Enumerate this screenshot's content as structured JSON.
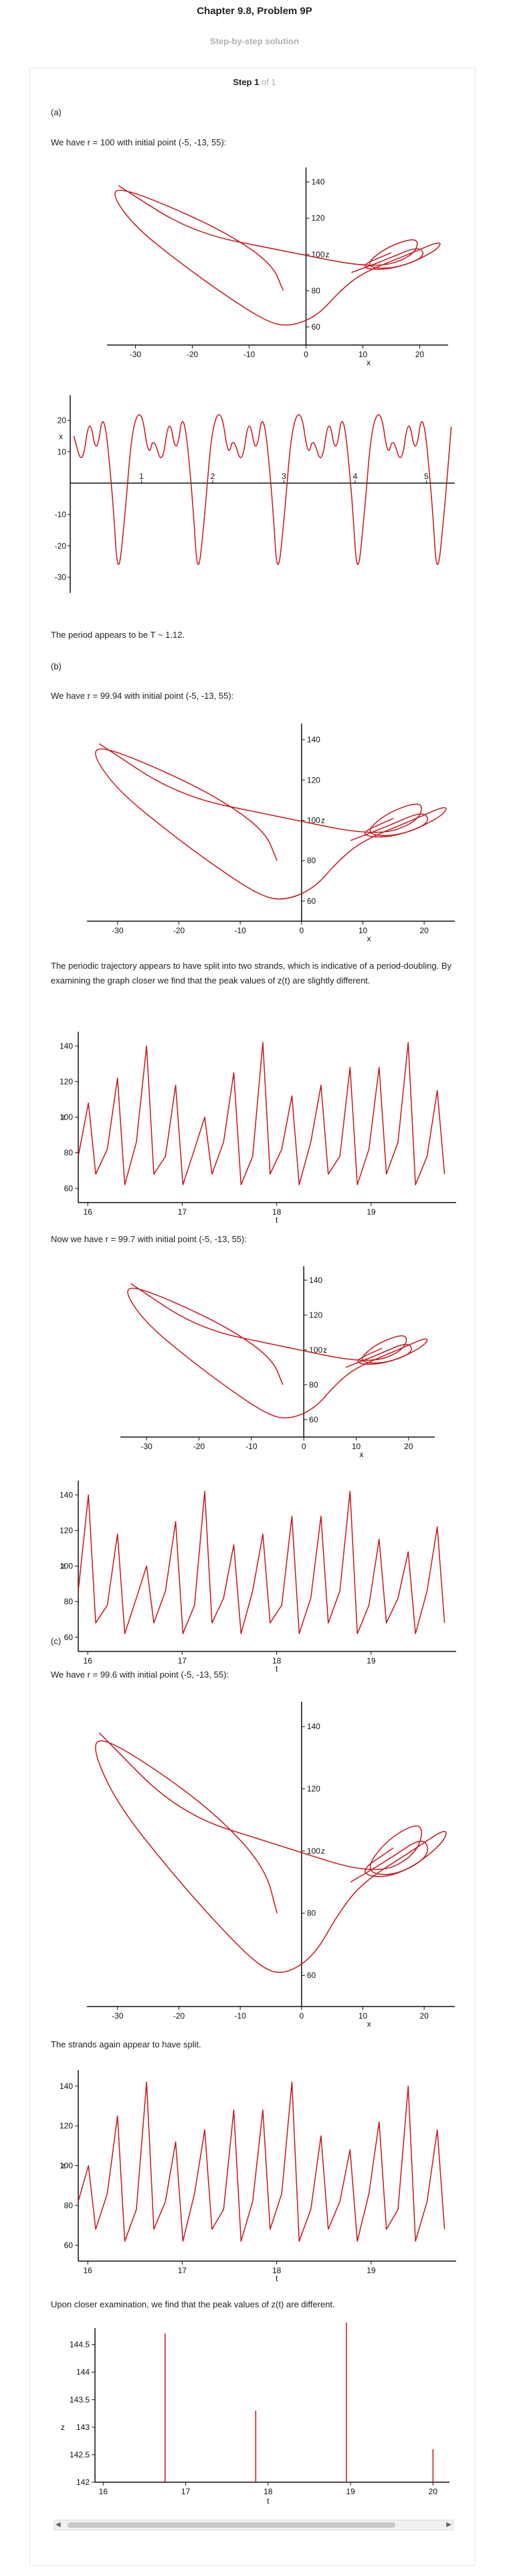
{
  "header": {
    "title": "Chapter 9.8, Problem 9P",
    "subtitle": "Step-by-step solution"
  },
  "step": {
    "label": "Step 1",
    "of": "of 1"
  },
  "texts": {
    "a_label": "(a)",
    "a_intro": "We have r = 100 with initial point (-5, -13, 55):",
    "a_period": "The period appears to be T ~ 1.12.",
    "b_label": "(b)",
    "b_intro": "We have r = 99.94 with initial point (-5, -13, 55):",
    "b_split": "The periodic trajectory appears to have split into two strands, which is indicative of a period-doubling. By examining the graph closer we find that the peak values of z(t) are slightly different.",
    "b_now": "Now we have r = 99.7 with initial point (-5, -13, 55):",
    "c_label": "(c)",
    "c_intro": "We have r = 99.6 with initial point (-5, -13, 55):",
    "c_split": "The strands again appear to have split.",
    "c_closer": "Upon closer examination, we find that the peak values of z(t) are different."
  },
  "chart_data": [
    {
      "type": "line",
      "xlabel": "x",
      "ylabel": "z",
      "x_ticks": [
        "-30",
        "-20",
        "-10",
        "0",
        "10",
        "20"
      ],
      "y_ticks": [
        "60",
        "80",
        "100",
        "120",
        "140"
      ]
    },
    {
      "type": "line",
      "xlabel": "",
      "ylabel": "x",
      "x_ticks": [
        "1",
        "2",
        "3",
        "4",
        "5"
      ],
      "y_ticks": [
        "20",
        "10",
        "-10",
        "-20",
        "-30"
      ]
    },
    {
      "type": "line",
      "xlabel": "x",
      "ylabel": "z",
      "x_ticks": [
        "-30",
        "-20",
        "-10",
        "0",
        "10",
        "20"
      ],
      "y_ticks": [
        "60",
        "80",
        "100",
        "120",
        "140"
      ]
    },
    {
      "type": "line",
      "xlabel": "t",
      "ylabel": "z",
      "x_ticks": [
        "16",
        "17",
        "18",
        "19"
      ],
      "y_ticks": [
        "60",
        "80",
        "100",
        "120",
        "140"
      ]
    },
    {
      "type": "line",
      "xlabel": "x",
      "ylabel": "z",
      "x_ticks": [
        "-30",
        "-20",
        "-10",
        "0",
        "10",
        "20"
      ],
      "y_ticks": [
        "60",
        "80",
        "100",
        "120",
        "140"
      ]
    },
    {
      "type": "line",
      "xlabel": "t",
      "ylabel": "z",
      "x_ticks": [
        "16",
        "17",
        "18",
        "19"
      ],
      "y_ticks": [
        "60",
        "80",
        "100",
        "120",
        "140"
      ]
    },
    {
      "type": "line",
      "xlabel": "x",
      "ylabel": "z",
      "x_ticks": [
        "-30",
        "-20",
        "-10",
        "0",
        "10",
        "20"
      ],
      "y_ticks": [
        "60",
        "80",
        "100",
        "120",
        "140"
      ]
    },
    {
      "type": "line",
      "xlabel": "t",
      "ylabel": "z",
      "x_ticks": [
        "16",
        "17",
        "18",
        "19"
      ],
      "y_ticks": [
        "60",
        "80",
        "100",
        "120",
        "140"
      ]
    },
    {
      "type": "bar",
      "xlabel": "t",
      "ylabel": "z",
      "x_ticks": [
        "16",
        "17",
        "18",
        "19",
        "20"
      ],
      "y_ticks": [
        "142",
        "142.5",
        "143",
        "143.5",
        "144",
        "144.5"
      ],
      "x": [
        16.75,
        17.85,
        18.95,
        20.0
      ],
      "y": [
        144.7,
        143.3,
        144.9,
        142.6
      ],
      "ylim": [
        142,
        144.8
      ]
    }
  ]
}
